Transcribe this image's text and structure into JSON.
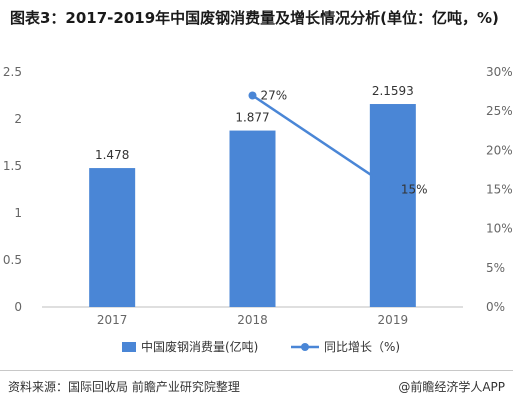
{
  "title": "图表3：2017-2019年中国废钢消费量及增长情况分析(单位：亿吨，%)",
  "source": "资料来源：国际回收局 前瞻产业研究院整理",
  "credit": "@前瞻经济学人APP",
  "colors": {
    "bar": "#4a86d6",
    "line": "#4a86d6",
    "grid": "#dddddd"
  },
  "chart_data": {
    "type": "bar",
    "categories": [
      "2017",
      "2018",
      "2019"
    ],
    "series": [
      {
        "name": "中国废钢消费量(亿吨)",
        "type": "bar",
        "axis": "left",
        "values": [
          1.478,
          1.877,
          2.1593
        ],
        "labels": [
          "1.478",
          "1.877",
          "2.1593"
        ]
      },
      {
        "name": "同比增长（%)",
        "type": "line",
        "axis": "right",
        "x": [
          "2018",
          "2019"
        ],
        "values": [
          27,
          15
        ],
        "labels": [
          "27%",
          "15%"
        ]
      }
    ],
    "y_left": {
      "min": 0,
      "max": 2.5,
      "ticks": [
        "0",
        "0.5",
        "1",
        "1.5",
        "2",
        "2.5"
      ]
    },
    "y_right": {
      "min": 0,
      "max": 30,
      "ticks": [
        "0%",
        "5%",
        "10%",
        "15%",
        "20%",
        "25%",
        "30%"
      ]
    },
    "grid": false,
    "legend": "bottom"
  }
}
